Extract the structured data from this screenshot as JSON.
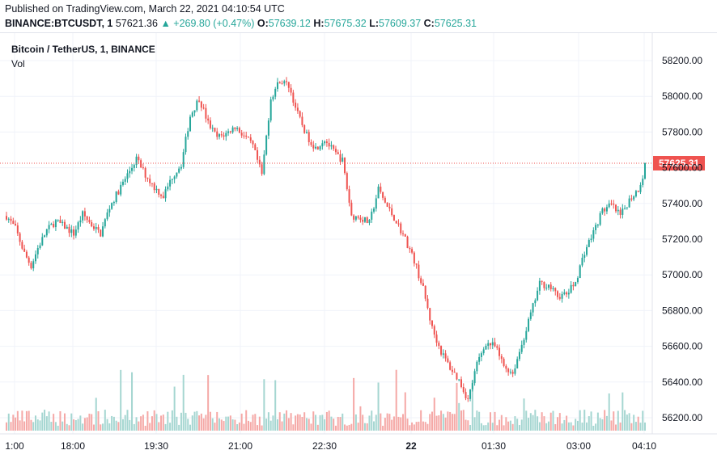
{
  "header": {
    "published": "Published on TradingView.com, March 22, 2021 04:10:54 UTC",
    "symbol": "BINANCE:BTCUSDT, 1",
    "last": "57621.36",
    "change": "▲ +269.80 (+0.47%)",
    "o_label": "O:",
    "o": "57639.12",
    "h_label": "H:",
    "h": "57675.32",
    "l_label": "L:",
    "l": "57609.37",
    "c_label": "C:",
    "c": "57625.31"
  },
  "legend": {
    "title": "Bitcoin / TetherUS, 1, BINANCE",
    "volume": "Vol"
  },
  "colors": {
    "up": "#26a69a",
    "down": "#ef5350",
    "vol_up": "#a5d6d1",
    "vol_down": "#f5a8a6",
    "grid": "#f0f3fa",
    "axis_text": "#131722",
    "price_line": "#ef5350"
  },
  "chart_data": {
    "type": "candlestick",
    "y_ticks": [
      "58200.00",
      "58000.00",
      "57800.00",
      "57600.00",
      "57400.00",
      "57200.00",
      "57000.00",
      "56800.00",
      "56600.00",
      "56400.00",
      "56200.00"
    ],
    "x_ticks": [
      "1:00",
      "18:00",
      "19:30",
      "21:00",
      "22:30",
      "22",
      "01:30",
      "03:00",
      "04:10"
    ],
    "ylim": [
      56120,
      58300
    ],
    "last_price_label": "57625.31",
    "last_price": 57625.31,
    "price_path": [
      [
        0,
        57330
      ],
      [
        4,
        57260
      ],
      [
        8,
        57120
      ],
      [
        11,
        57050
      ],
      [
        14,
        57150
      ],
      [
        18,
        57250
      ],
      [
        22,
        57300
      ],
      [
        26,
        57270
      ],
      [
        30,
        57230
      ],
      [
        34,
        57340
      ],
      [
        38,
        57280
      ],
      [
        42,
        57230
      ],
      [
        46,
        57380
      ],
      [
        50,
        57470
      ],
      [
        54,
        57560
      ],
      [
        58,
        57650
      ],
      [
        62,
        57560
      ],
      [
        66,
        57490
      ],
      [
        70,
        57440
      ],
      [
        74,
        57550
      ],
      [
        78,
        57620
      ],
      [
        82,
        57890
      ],
      [
        86,
        57990
      ],
      [
        90,
        57850
      ],
      [
        94,
        57770
      ],
      [
        98,
        57790
      ],
      [
        102,
        57830
      ],
      [
        106,
        57780
      ],
      [
        110,
        57720
      ],
      [
        114,
        57560
      ],
      [
        118,
        57990
      ],
      [
        122,
        58090
      ],
      [
        126,
        58060
      ],
      [
        130,
        57900
      ],
      [
        134,
        57780
      ],
      [
        138,
        57710
      ],
      [
        142,
        57760
      ],
      [
        146,
        57690
      ],
      [
        150,
        57640
      ],
      [
        154,
        57330
      ],
      [
        158,
        57320
      ],
      [
        162,
        57290
      ],
      [
        166,
        57480
      ],
      [
        170,
        57380
      ],
      [
        174,
        57300
      ],
      [
        178,
        57200
      ],
      [
        182,
        57080
      ],
      [
        186,
        56920
      ],
      [
        190,
        56700
      ],
      [
        194,
        56570
      ],
      [
        198,
        56480
      ],
      [
        202,
        56410
      ],
      [
        206,
        56300
      ],
      [
        210,
        56500
      ],
      [
        214,
        56620
      ],
      [
        218,
        56600
      ],
      [
        222,
        56490
      ],
      [
        226,
        56450
      ],
      [
        230,
        56610
      ],
      [
        234,
        56780
      ],
      [
        238,
        56950
      ],
      [
        242,
        56940
      ],
      [
        246,
        56880
      ],
      [
        250,
        56890
      ],
      [
        254,
        56960
      ],
      [
        258,
        57130
      ],
      [
        262,
        57240
      ],
      [
        266,
        57360
      ],
      [
        270,
        57390
      ],
      [
        274,
        57330
      ],
      [
        278,
        57420
      ],
      [
        282,
        57480
      ],
      [
        286,
        57625
      ]
    ]
  }
}
